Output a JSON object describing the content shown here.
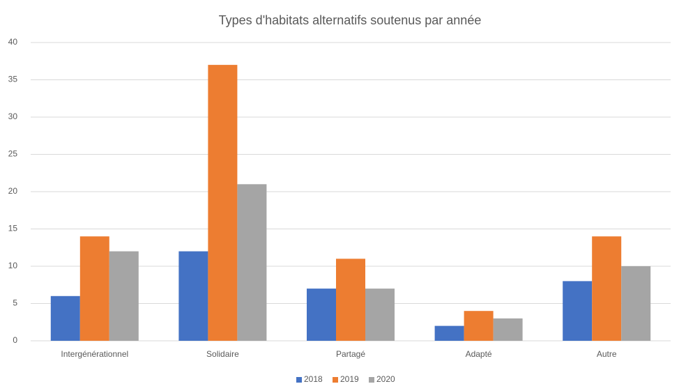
{
  "chart_data": {
    "type": "bar",
    "title": "Types d'habitats alternatifs soutenus par année",
    "categories": [
      "Intergénérationnel",
      "Solidaire",
      "Partagé",
      "Adapté",
      "Autre"
    ],
    "series": [
      {
        "name": "2018",
        "color": "#4472c4",
        "values": [
          6,
          12,
          7,
          2,
          8
        ]
      },
      {
        "name": "2019",
        "color": "#ed7d31",
        "values": [
          14,
          37,
          11,
          4,
          14
        ]
      },
      {
        "name": "2020",
        "color": "#a5a5a5",
        "values": [
          12,
          21,
          7,
          3,
          10
        ]
      }
    ],
    "ylim": [
      0,
      40
    ],
    "yticks": [
      0,
      5,
      10,
      15,
      20,
      25,
      30,
      35,
      40
    ],
    "grid": true,
    "legend": "bottom"
  }
}
